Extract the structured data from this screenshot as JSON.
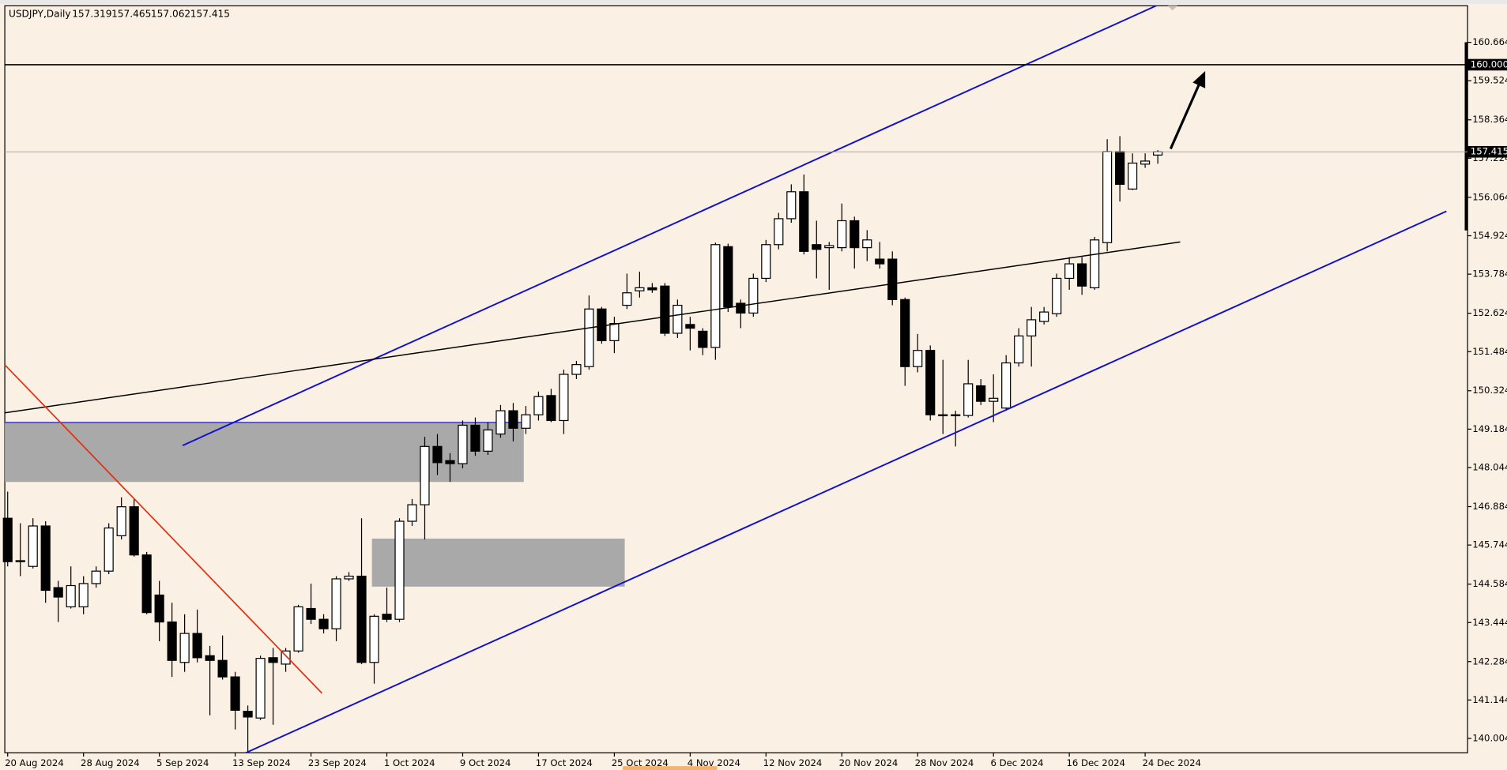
{
  "chart_data": {
    "type": "candlestick",
    "title": "USDJPY,Daily",
    "categories": [
      "20 Aug 2024",
      null,
      null,
      null,
      null,
      null,
      "28 Aug 2024",
      null,
      null,
      null,
      null,
      null,
      "5 Sep 2024",
      null,
      null,
      null,
      null,
      null,
      "13 Sep 2024",
      null,
      null,
      null,
      null,
      null,
      "23 Sep 2024",
      null,
      null,
      null,
      null,
      null,
      "1 Oct 2024",
      null,
      null,
      null,
      null,
      null,
      "9 Oct 2024",
      null,
      null,
      null,
      null,
      null,
      "17 Oct 2024",
      null,
      null,
      null,
      null,
      null,
      "25 Oct 2024",
      null,
      null,
      null,
      null,
      null,
      "4 Nov 2024",
      null,
      null,
      null,
      null,
      null,
      "12 Nov 2024",
      null,
      null,
      null,
      null,
      null,
      "20 Nov 2024",
      null,
      null,
      null,
      null,
      null,
      "28 Nov 2024",
      null,
      null,
      null,
      null,
      null,
      "6 Dec 2024",
      null,
      null,
      null,
      null,
      null,
      "16 Dec 2024",
      null,
      null,
      null,
      null,
      null,
      "24 Dec 2024",
      null
    ],
    "open": [
      146.54,
      145.25,
      145.11,
      146.31,
      144.48,
      143.91,
      143.91,
      144.6,
      144.97,
      146.02,
      146.88,
      145.45,
      144.26,
      143.46,
      142.26,
      143.12,
      142.46,
      142.32,
      141.83,
      140.81,
      140.61,
      142.4,
      142.21,
      142.6,
      143.86,
      143.54,
      143.26,
      144.74,
      144.82,
      142.26,
      143.69,
      143.54,
      146.45,
      146.94,
      148.67,
      148.25,
      148.16,
      149.3,
      148.53,
      149.04,
      149.73,
      149.21,
      149.61,
      150.18,
      149.44,
      150.81,
      151.04,
      152.75,
      151.81,
      152.86,
      153.29,
      153.38,
      153.43,
      152.03,
      152.29,
      152.09,
      151.61,
      154.6,
      152.92,
      152.63,
      153.66,
      154.66,
      155.43,
      156.23,
      154.66,
      154.57,
      154.57,
      155.37,
      154.57,
      154.23,
      154.23,
      153.03,
      151.04,
      151.52,
      149.59,
      149.59,
      149.59,
      150.47,
      150.01,
      149.81,
      151.15,
      151.95,
      152.38,
      152.61,
      153.66,
      154.09,
      153.38,
      154.72,
      157.42,
      156.31,
      157.05,
      157.319
    ],
    "high": [
      147.33,
      146.39,
      146.54,
      146.45,
      144.68,
      145.11,
      144.82,
      145.11,
      146.39,
      147.16,
      147.11,
      145.54,
      144.68,
      144.03,
      143.69,
      143.83,
      142.75,
      143.06,
      141.98,
      140.98,
      142.46,
      142.69,
      142.69,
      143.97,
      144.6,
      143.69,
      144.82,
      144.94,
      146.54,
      143.69,
      144.48,
      146.54,
      147.11,
      148.96,
      149.04,
      148.47,
      149.44,
      149.53,
      149.39,
      149.9,
      149.96,
      149.87,
      150.3,
      150.38,
      150.95,
      151.21,
      153.15,
      152.81,
      152.52,
      153.8,
      153.86,
      153.52,
      153.52,
      153.03,
      152.52,
      152.18,
      154.72,
      154.69,
      153.03,
      153.8,
      154.8,
      155.6,
      156.45,
      156.74,
      155.37,
      154.74,
      155.88,
      155.49,
      155.09,
      154.74,
      154.46,
      153.09,
      152.01,
      151.67,
      151.24,
      149.73,
      151.24,
      150.67,
      150.81,
      151.38,
      152.18,
      152.81,
      152.81,
      153.8,
      154.29,
      154.29,
      154.89,
      157.79,
      157.88,
      157.37,
      157.37,
      157.465
    ],
    "low": [
      145.11,
      144.82,
      145.05,
      144.03,
      143.46,
      143.86,
      143.69,
      144.48,
      144.88,
      145.91,
      145.4,
      143.69,
      142.89,
      141.83,
      141.98,
      142.26,
      140.69,
      141.75,
      140.27,
      139.6,
      140.55,
      140.41,
      141.98,
      142.55,
      143.4,
      143.12,
      142.89,
      144.68,
      142.21,
      141.63,
      143.46,
      143.46,
      146.31,
      145.91,
      147.82,
      147.62,
      148.02,
      148.39,
      148.42,
      148.93,
      148.82,
      149.04,
      149.44,
      149.39,
      149.04,
      150.67,
      150.95,
      151.72,
      151.44,
      152.75,
      153.09,
      153.23,
      151.95,
      151.89,
      151.52,
      151.38,
      151.24,
      152.66,
      152.18,
      152.52,
      153.55,
      154.52,
      155.31,
      154.37,
      153.66,
      153.32,
      154.46,
      153.95,
      154.17,
      153.95,
      152.86,
      150.47,
      150.87,
      149.44,
      149.04,
      148.67,
      149.53,
      149.9,
      149.39,
      149.73,
      151.04,
      151.04,
      152.29,
      152.52,
      153.32,
      153.17,
      153.32,
      154.46,
      155.94,
      156.28,
      156.94,
      157.062
    ],
    "close": [
      145.25,
      145.28,
      146.31,
      144.4,
      144.2,
      144.54,
      144.6,
      144.97,
      146.25,
      146.88,
      145.45,
      143.74,
      143.46,
      142.32,
      143.12,
      142.4,
      142.32,
      141.83,
      140.84,
      140.64,
      142.38,
      142.26,
      142.6,
      143.91,
      143.54,
      143.26,
      144.74,
      144.82,
      142.26,
      143.63,
      143.54,
      146.45,
      146.94,
      148.67,
      148.19,
      148.16,
      149.3,
      148.53,
      149.16,
      149.73,
      149.21,
      149.61,
      150.15,
      149.44,
      150.81,
      151.1,
      152.75,
      151.81,
      152.32,
      153.23,
      153.38,
      153.32,
      152.03,
      152.86,
      152.18,
      151.61,
      154.66,
      152.81,
      152.63,
      153.66,
      154.66,
      155.43,
      156.23,
      154.46,
      154.52,
      154.63,
      155.37,
      154.57,
      154.8,
      154.09,
      153.03,
      151.04,
      151.52,
      149.61,
      149.61,
      149.61,
      150.53,
      150.01,
      150.1,
      151.15,
      151.95,
      152.43,
      152.66,
      153.66,
      154.09,
      153.43,
      154.8,
      157.42,
      156.45,
      157.08,
      157.14,
      157.415
    ],
    "up_color": "#ffffff",
    "down_color": "#000000",
    "ylim": [
      139.58,
      161.75
    ],
    "yticks": [
      160.664,
      159.524,
      158.364,
      157.224,
      156.064,
      154.924,
      153.784,
      152.624,
      151.484,
      150.324,
      149.184,
      148.044,
      146.884,
      145.744,
      144.584,
      143.444,
      142.284,
      141.144,
      140.004
    ],
    "hlines": [
      {
        "value": 160,
        "label": "160.000"
      }
    ]
  }
}
